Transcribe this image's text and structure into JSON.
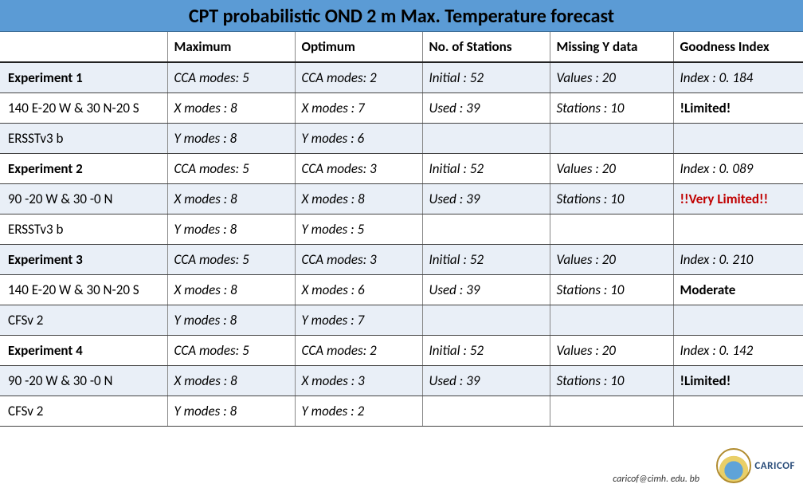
{
  "title": "CPT probabilistic OND 2 m Max. Temperature forecast",
  "columns": [
    "",
    "Maximum",
    "Optimum",
    "No. of Stations",
    "Missing Y data",
    "Goodness Index"
  ],
  "rows": [
    {
      "alt": true,
      "bold": true,
      "label": "Experiment 1",
      "c1": "CCA modes: 5",
      "c2": "CCA modes: 2",
      "c3": "Initial : 52",
      "c4": "Values : 20",
      "c5": "Index : 0. 184",
      "c5style": "italic"
    },
    {
      "alt": false,
      "bold": false,
      "label": "140 E-20 W & 30 N-20 S",
      "c1": "X modes : 8",
      "c2": "X modes : 7",
      "c3": "Used : 39",
      "c4": "Stations : 10",
      "c5": "!Limited!",
      "c5style": "bold"
    },
    {
      "alt": true,
      "bold": false,
      "label": "ERSSTv3 b",
      "c1": "Y modes : 8",
      "c2": "Y modes : 6",
      "c3": "",
      "c4": "",
      "c5": "",
      "c5style": ""
    },
    {
      "alt": false,
      "bold": true,
      "label": "Experiment 2",
      "c1": "CCA modes: 5",
      "c2": "CCA modes: 3",
      "c3": "Initial : 52",
      "c4": "Values : 20",
      "c5": "Index : 0. 089",
      "c5style": "italic"
    },
    {
      "alt": true,
      "bold": false,
      "label": "90 -20 W & 30 -0 N",
      "c1": "X modes : 8",
      "c2": "X modes : 8",
      "c3": "Used : 39",
      "c4": "Stations : 10",
      "c5": "!!Very Limited!!",
      "c5style": "red bold"
    },
    {
      "alt": false,
      "bold": false,
      "label": "ERSSTv3 b",
      "c1": "Y modes : 8",
      "c2": "Y modes : 5",
      "c3": "",
      "c4": "",
      "c5": "",
      "c5style": ""
    },
    {
      "alt": true,
      "bold": true,
      "label": "Experiment 3",
      "c1": "CCA modes: 5",
      "c2": "CCA modes: 3",
      "c3": "Initial : 52",
      "c4": "Values : 20",
      "c5": "Index : 0. 210",
      "c5style": "italic"
    },
    {
      "alt": false,
      "bold": false,
      "label": "140 E-20 W & 30 N-20 S",
      "c1": "X modes : 8",
      "c2": "X modes : 6",
      "c3": "Used : 39",
      "c4": "Stations : 10",
      "c5": "Moderate",
      "c5style": "bold"
    },
    {
      "alt": true,
      "bold": false,
      "label": "CFSv 2",
      "c1": "Y modes : 8",
      "c2": "Y modes : 7",
      "c3": "",
      "c4": "",
      "c5": "",
      "c5style": ""
    },
    {
      "alt": false,
      "bold": true,
      "label": "Experiment 4",
      "c1": "CCA modes: 5",
      "c2": "CCA modes: 2",
      "c3": "Initial : 52",
      "c4": "Values : 20",
      "c5": "Index : 0. 142",
      "c5style": "italic"
    },
    {
      "alt": true,
      "bold": false,
      "label": "90 -20 W & 30 -0 N",
      "c1": "X modes : 8",
      "c2": "X modes : 3",
      "c3": "Used : 39",
      "c4": "Stations : 10",
      "c5": "!Limited!",
      "c5style": "bold"
    },
    {
      "alt": false,
      "bold": false,
      "label": "CFSv 2",
      "c1": "Y modes : 8",
      "c2": "Y modes : 2",
      "c3": "",
      "c4": "",
      "c5": "",
      "c5style": ""
    }
  ],
  "footer_email": "caricof@cimh. edu. bb",
  "logo_text": "CARICOF",
  "colors": {
    "header_bg": "#5b9bd5",
    "alt_row_bg": "#e9eff7",
    "border": "#888888",
    "red": "#c00000"
  }
}
